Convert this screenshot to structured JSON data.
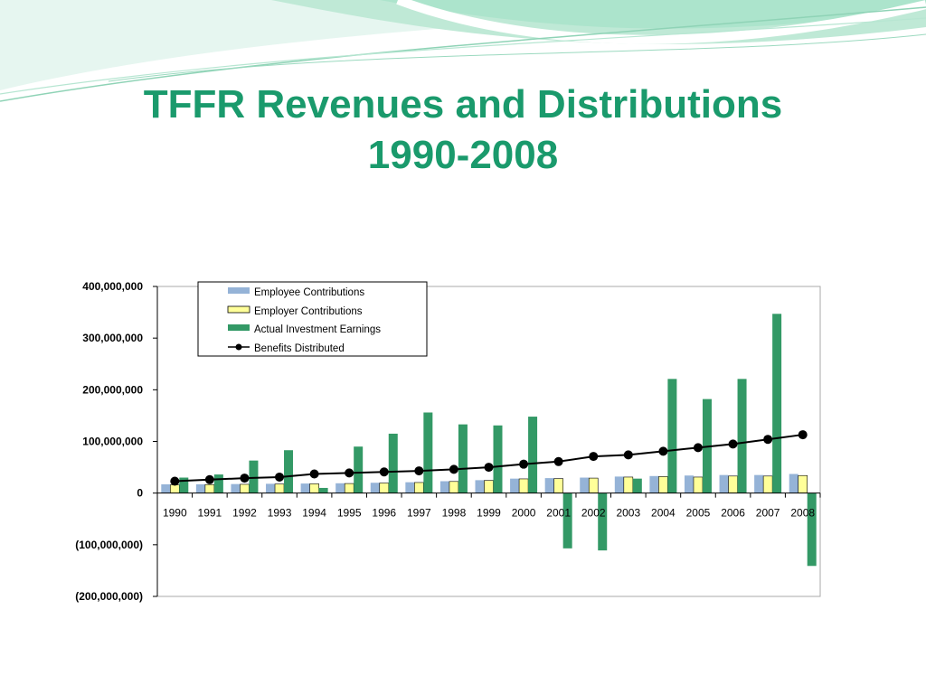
{
  "slide": {
    "title_line1": "TFFR Revenues and Distributions",
    "title_line2": "1990-2008"
  },
  "colors": {
    "title": "#1a9a6c",
    "employee": "#95b3d7",
    "employer": "#ffff99",
    "investment": "#339966",
    "benefits": "#000000"
  },
  "chart_data": {
    "type": "bar",
    "title": "",
    "xlabel": "",
    "ylabel": "",
    "categories": [
      "1990",
      "1991",
      "1992",
      "1993",
      "1994",
      "1995",
      "1996",
      "1997",
      "1998",
      "1999",
      "2000",
      "2001",
      "2002",
      "2003",
      "2004",
      "2005",
      "2006",
      "2007",
      "2008"
    ],
    "series": [
      {
        "name": "Employee Contributions",
        "type": "bar",
        "values": [
          17000000,
          17000000,
          17500000,
          18000000,
          18500000,
          19000000,
          20000000,
          21000000,
          23000000,
          25000000,
          28000000,
          29000000,
          30000000,
          32000000,
          33000000,
          34000000,
          35000000,
          35000000,
          37000000
        ]
      },
      {
        "name": "Employer Contributions",
        "type": "bar",
        "values": [
          16000000,
          16500000,
          17000000,
          17500000,
          18000000,
          18500000,
          19500000,
          20500000,
          22500000,
          24500000,
          27500000,
          28000000,
          29000000,
          31000000,
          32000000,
          31000000,
          33000000,
          33000000,
          34000000
        ]
      },
      {
        "name": "Actual Investment Earnings",
        "type": "bar",
        "values": [
          30000000,
          36000000,
          63000000,
          83000000,
          10000000,
          90000000,
          115000000,
          156000000,
          133000000,
          131000000,
          148000000,
          -107000000,
          -111000000,
          28000000,
          221000000,
          182000000,
          221000000,
          347000000,
          -141000000
        ]
      },
      {
        "name": "Benefits Distributed",
        "type": "line",
        "values": [
          23000000,
          26000000,
          29000000,
          31000000,
          37000000,
          39000000,
          41000000,
          43000000,
          46000000,
          50000000,
          56000000,
          61000000,
          71000000,
          74000000,
          81000000,
          88000000,
          95000000,
          104000000,
          113000000
        ]
      }
    ],
    "ylim": [
      -200000000,
      400000000
    ],
    "yticks": [
      400000000,
      300000000,
      200000000,
      100000000,
      0,
      -100000000,
      -200000000
    ],
    "ytick_labels": [
      "400,000,000",
      "300,000,000",
      "200,000,000",
      "100,000,000",
      "0",
      "(100,000,000)",
      "(200,000,000)"
    ],
    "grid": false,
    "legend_position": "top-left inside plot"
  }
}
